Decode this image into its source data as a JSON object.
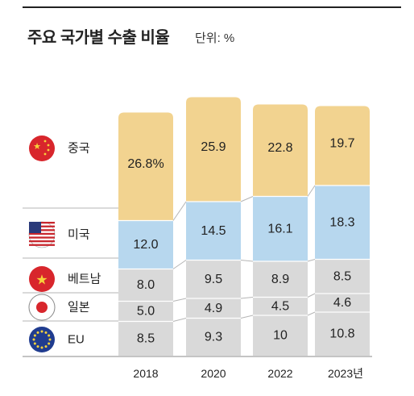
{
  "title": "주요 국가별 수출 비율",
  "unit_label": "단위: %",
  "colors": {
    "china": "#f2d390",
    "us": "#b7d7ee",
    "rest": "#d9d9d9",
    "text": "#222222",
    "grid": "#b5b5b5"
  },
  "countries": [
    {
      "key": "china",
      "label": "중국",
      "icon": "china-flag-icon"
    },
    {
      "key": "us",
      "label": "미국",
      "icon": "usa-flag-icon"
    },
    {
      "key": "vietnam",
      "label": "베트남",
      "icon": "vietnam-flag-icon"
    },
    {
      "key": "japan",
      "label": "일본",
      "icon": "japan-flag-icon"
    },
    {
      "key": "eu",
      "label": "EU",
      "icon": "eu-flag-icon"
    }
  ],
  "chart_data": {
    "type": "bar",
    "stacked": true,
    "categories": [
      "2018",
      "2020",
      "2022",
      "2023년"
    ],
    "series": [
      {
        "name": "EU",
        "values": [
          8.5,
          9.3,
          10,
          10.8
        ],
        "labels": [
          "8.5",
          "9.3",
          "10",
          "10.8"
        ]
      },
      {
        "name": "일본",
        "values": [
          5.0,
          4.9,
          4.5,
          4.6
        ],
        "labels": [
          "5.0",
          "4.9",
          "4.5",
          "4.6"
        ]
      },
      {
        "name": "베트남",
        "values": [
          8.0,
          9.5,
          8.9,
          8.5
        ],
        "labels": [
          "8.0",
          "9.5",
          "8.9",
          "8.5"
        ]
      },
      {
        "name": "미국",
        "values": [
          12.0,
          14.5,
          16.1,
          18.3
        ],
        "labels": [
          "12.0",
          "14.5",
          "16.1",
          "18.3"
        ]
      },
      {
        "name": "중국",
        "values": [
          26.8,
          25.9,
          22.8,
          19.7
        ],
        "labels": [
          "26.8%",
          "25.9",
          "22.8",
          "19.7"
        ]
      }
    ],
    "title": "주요 국가별 수출 비율",
    "unit": "단위: %",
    "xlabel": "",
    "ylabel": "",
    "grid": false,
    "legend": "left"
  }
}
